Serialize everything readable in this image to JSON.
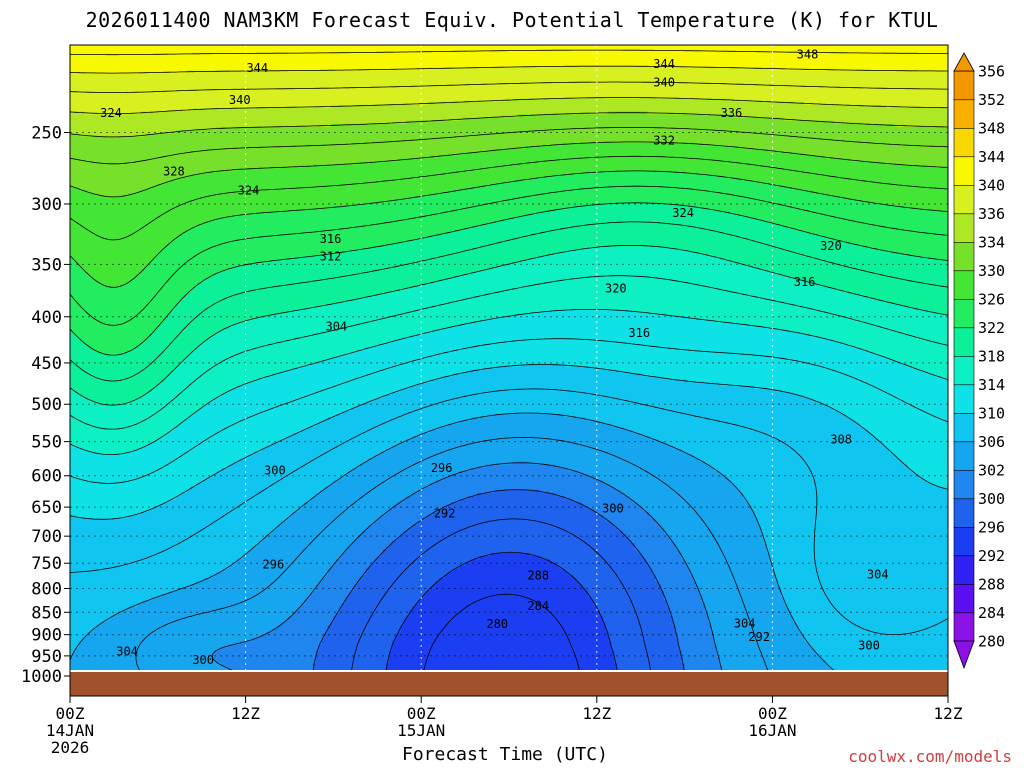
{
  "title": "2026011400 NAM3KM Forecast Equiv. Potential Temperature (K) for KTUL",
  "watermark": "coolwx.com/models",
  "chart_data": {
    "type": "contour",
    "title": "2026011400 NAM3KM Forecast Equiv. Potential Temperature (K) for KTUL",
    "xlabel": "Forecast Time (UTC)",
    "ylabel": "",
    "x_range_hours": [
      0,
      60
    ],
    "x_ticks": [
      {
        "hour": 0,
        "label": "00Z",
        "sub": [
          "14JAN",
          "2026"
        ]
      },
      {
        "hour": 12,
        "label": "12Z",
        "sub": []
      },
      {
        "hour": 24,
        "label": "00Z",
        "sub": [
          "15JAN"
        ]
      },
      {
        "hour": 36,
        "label": "12Z",
        "sub": []
      },
      {
        "hour": 48,
        "label": "00Z",
        "sub": [
          "16JAN"
        ]
      },
      {
        "hour": 60,
        "label": "12Z",
        "sub": []
      }
    ],
    "y_scale": "log",
    "y_inverted": true,
    "y_range": [
      1000,
      200
    ],
    "y_ticks": [
      250,
      300,
      350,
      400,
      450,
      500,
      550,
      600,
      650,
      700,
      750,
      800,
      850,
      900,
      950,
      1000
    ],
    "grid": true,
    "colorbar": {
      "levels": [
        280,
        284,
        288,
        292,
        296,
        300,
        302,
        306,
        310,
        314,
        318,
        322,
        326,
        330,
        334,
        336,
        340,
        344,
        348,
        352,
        356
      ],
      "colors": [
        "#8a12e6",
        "#5a10f0",
        "#2f20f4",
        "#1c3ef2",
        "#1e62ee",
        "#1e86ee",
        "#16a6f0",
        "#10c6f0",
        "#0ee2e6",
        "#0cf0c4",
        "#0cf09a",
        "#22ec60",
        "#44e636",
        "#76e02a",
        "#aee824",
        "#d8f020",
        "#f8f800",
        "#f8d800",
        "#f8b000",
        "#f49800"
      ],
      "extend": "both",
      "placement": "right"
    },
    "contour_interval": 2,
    "contour_labels": [
      {
        "value": 344,
        "hour": 12.8,
        "p": 212
      },
      {
        "value": 340,
        "hour": 11.6,
        "p": 230
      },
      {
        "value": 344,
        "hour": 40.6,
        "p": 210
      },
      {
        "value": 340,
        "hour": 40.6,
        "p": 220
      },
      {
        "value": 348,
        "hour": 50.4,
        "p": 205
      },
      {
        "value": 336,
        "hour": 45.2,
        "p": 238
      },
      {
        "value": 332,
        "hour": 40.6,
        "p": 255
      },
      {
        "value": 324,
        "hour": 2.8,
        "p": 238
      },
      {
        "value": 328,
        "hour": 7.1,
        "p": 276
      },
      {
        "value": 324,
        "hour": 12.2,
        "p": 290
      },
      {
        "value": 324,
        "hour": 41.9,
        "p": 307
      },
      {
        "value": 320,
        "hour": 52.0,
        "p": 334
      },
      {
        "value": 316,
        "hour": 50.2,
        "p": 366
      },
      {
        "value": 320,
        "hour": 37.3,
        "p": 372
      },
      {
        "value": 316,
        "hour": 17.8,
        "p": 328
      },
      {
        "value": 312,
        "hour": 17.8,
        "p": 343
      },
      {
        "value": 316,
        "hour": 38.9,
        "p": 417
      },
      {
        "value": 304,
        "hour": 18.2,
        "p": 410
      },
      {
        "value": 308,
        "hour": 52.7,
        "p": 547
      },
      {
        "value": 300,
        "hour": 14.0,
        "p": 592
      },
      {
        "value": 296,
        "hour": 25.4,
        "p": 588
      },
      {
        "value": 292,
        "hour": 25.6,
        "p": 661
      },
      {
        "value": 300,
        "hour": 37.1,
        "p": 652
      },
      {
        "value": 296,
        "hour": 13.9,
        "p": 752
      },
      {
        "value": 288,
        "hour": 32.0,
        "p": 774
      },
      {
        "value": 284,
        "hour": 32.0,
        "p": 837
      },
      {
        "value": 280,
        "hour": 29.2,
        "p": 876
      },
      {
        "value": 304,
        "hour": 55.2,
        "p": 772
      },
      {
        "value": 304,
        "hour": 46.1,
        "p": 875
      },
      {
        "value": 292,
        "hour": 47.1,
        "p": 905
      },
      {
        "value": 300,
        "hour": 54.6,
        "p": 925
      },
      {
        "value": 304,
        "hour": 3.9,
        "p": 940
      },
      {
        "value": 300,
        "hour": 9.1,
        "p": 960
      }
    ]
  }
}
